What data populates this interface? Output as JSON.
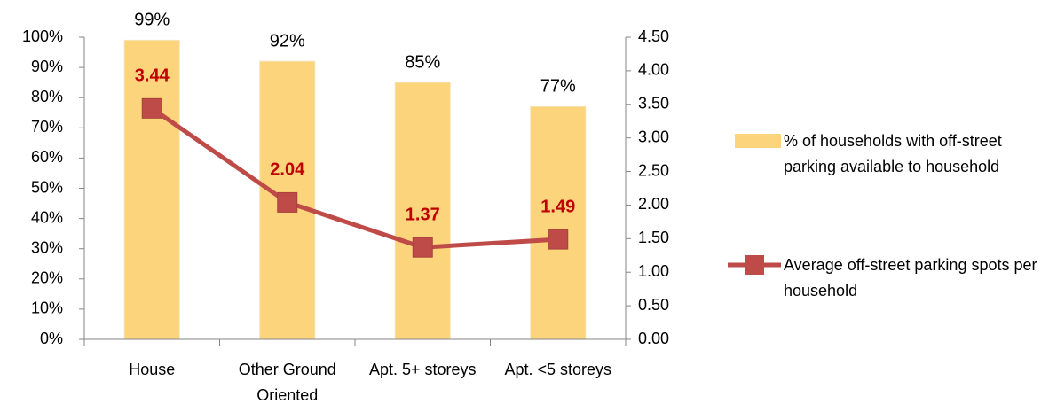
{
  "chart_data": {
    "type": "bar",
    "categories": [
      "House",
      "Other Ground Oriented",
      "Apt. 5+ storeys",
      "Apt. <5 storeys"
    ],
    "series": [
      {
        "name": "% of households with off-street parking available to household",
        "type": "bar",
        "color": "#fbd47c",
        "values": [
          99,
          92,
          85,
          77
        ],
        "value_labels": [
          "99%",
          "92%",
          "85%",
          "77%"
        ]
      },
      {
        "name": "Average off-street parking spots per household",
        "type": "line",
        "axis": "y2",
        "color": "#be4b48",
        "label_color": "#c00000",
        "values": [
          3.44,
          2.04,
          1.37,
          1.49
        ]
      }
    ],
    "ylim": [
      0,
      100
    ],
    "yticks": [
      {
        "value": 0,
        "label": "0%"
      },
      {
        "value": 10,
        "label": "10%"
      },
      {
        "value": 20,
        "label": "20%"
      },
      {
        "value": 30,
        "label": "30%"
      },
      {
        "value": 40,
        "label": "40%"
      },
      {
        "value": 50,
        "label": "50%"
      },
      {
        "value": 60,
        "label": "60%"
      },
      {
        "value": 70,
        "label": "70%"
      },
      {
        "value": 80,
        "label": "80%"
      },
      {
        "value": 90,
        "label": "90%"
      },
      {
        "value": 100,
        "label": "100%"
      }
    ],
    "y2lim": [
      0,
      4.5
    ],
    "y2ticks": [
      {
        "value": 0,
        "label": "0.00"
      },
      {
        "value": 0.5,
        "label": "0.50"
      },
      {
        "value": 1,
        "label": "1.00"
      },
      {
        "value": 1.5,
        "label": "1.50"
      },
      {
        "value": 2,
        "label": "2.00"
      },
      {
        "value": 2.5,
        "label": "2.50"
      },
      {
        "value": 3,
        "label": "3.00"
      },
      {
        "value": 3.5,
        "label": "3.50"
      },
      {
        "value": 4,
        "label": "4.00"
      },
      {
        "value": 4.5,
        "label": "4.50"
      }
    ],
    "grid": false,
    "legend": "right"
  }
}
